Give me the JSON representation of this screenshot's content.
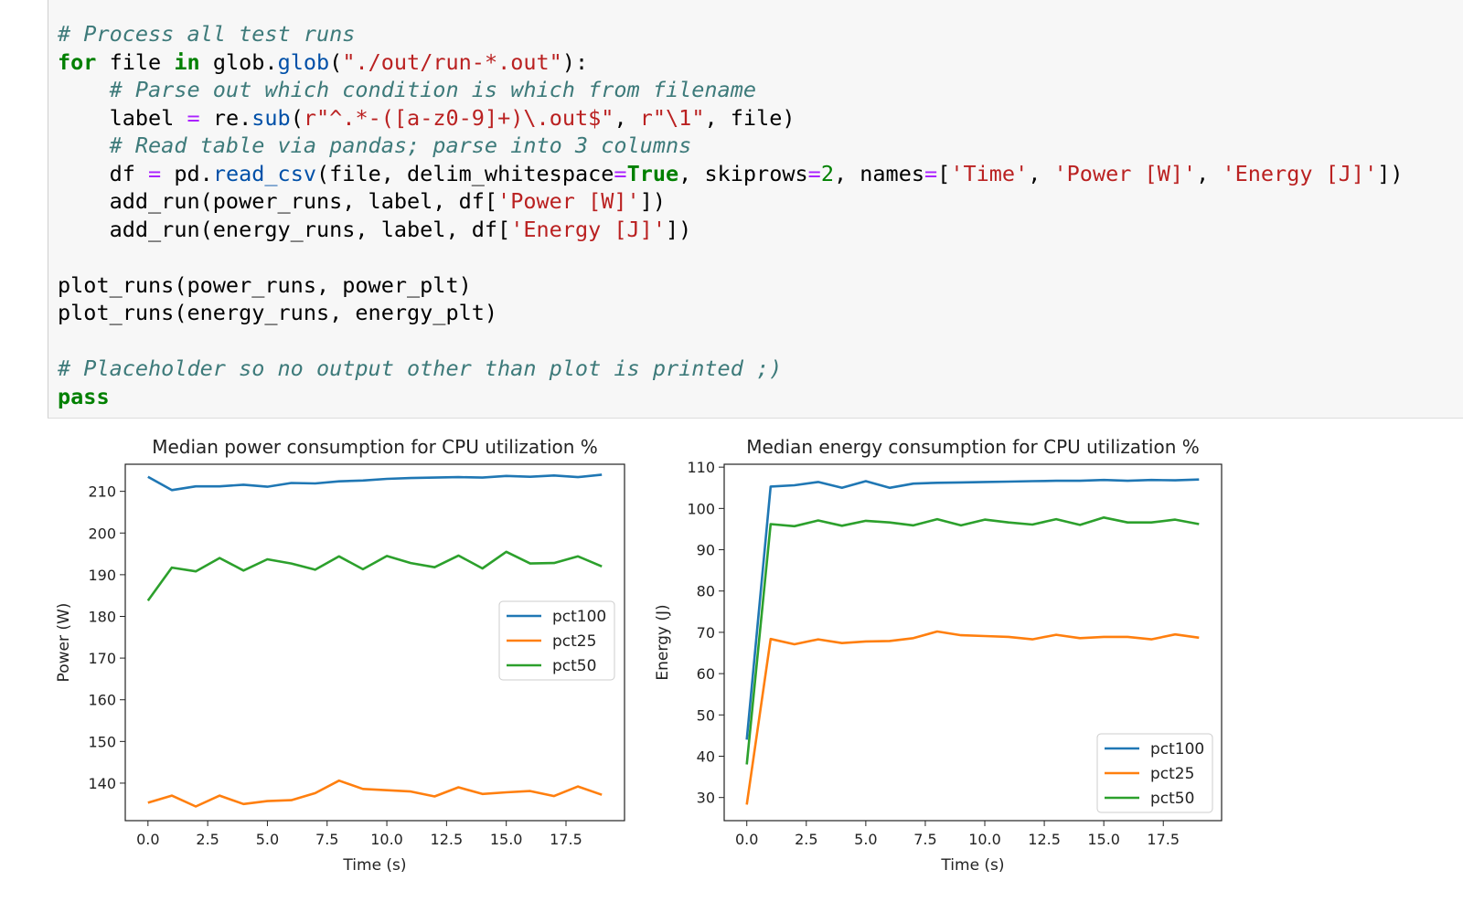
{
  "code": {
    "line1": "# Process all test runs",
    "kw_for": "for",
    "v_file": "file",
    "kw_in": "in",
    "p_glob": "glob.",
    "fn_glob": "glob",
    "s_pattern": "\"./out/run-*.out\"",
    "c_parse": "# Parse out which condition is which from filename",
    "v_label": "label",
    "eq": "=",
    "p_re": "re.",
    "fn_sub": "sub",
    "s_regex": "r\"^.*-([a-z0-9]+)\\.out$\"",
    "s_group": "r\"\\1\"",
    "c_read": "# Read table via pandas; parse into 3 columns",
    "v_df": "df",
    "p_pd": "pd.",
    "fn_read_csv": "read_csv",
    "arg_file": "(file, delim_whitespace",
    "kw_true": "True",
    "arg_skip": ", skiprows",
    "num_2": "2",
    "arg_names": ", names",
    "s_time": "'Time'",
    "s_power": "'Power [W]'",
    "s_energy": "'Energy [J]'",
    "add_power": "add_run(power_runs, label, df[",
    "add_energy": "add_run(energy_runs, label, df[",
    "plot_power": "plot_runs(power_runs, power_plt)",
    "plot_energy": "plot_runs(energy_runs, energy_plt)",
    "c_placeholder": "# Placeholder so no output other than plot is printed ;)",
    "kw_pass": "pass"
  },
  "chart_data": [
    {
      "type": "line",
      "title": "Median power consumption for CPU utilization %",
      "xlabel": "Time (s)",
      "ylabel": "Power (W)",
      "xlim": [
        -0.95,
        19.95
      ],
      "ylim": [
        131,
        216.5
      ],
      "xticks": [
        0.0,
        2.5,
        5.0,
        7.5,
        10.0,
        12.5,
        15.0,
        17.5
      ],
      "xtick_labels": [
        "0.0",
        "2.5",
        "5.0",
        "7.5",
        "10.0",
        "12.5",
        "15.0",
        "17.5"
      ],
      "yticks": [
        140,
        150,
        160,
        170,
        180,
        190,
        200,
        210
      ],
      "ytick_labels": [
        "140",
        "150",
        "160",
        "170",
        "180",
        "190",
        "200",
        "210"
      ],
      "legend": "center-right",
      "grid": false,
      "x": [
        0,
        1,
        2,
        3,
        4,
        5,
        6,
        7,
        8,
        9,
        10,
        11,
        12,
        13,
        14,
        15,
        16,
        17,
        18,
        19
      ],
      "series": [
        {
          "name": "pct100",
          "color": "#1f77b4",
          "values": [
            213.5,
            210.3,
            211.2,
            211.2,
            211.6,
            211.1,
            212.0,
            211.9,
            212.4,
            212.6,
            213.0,
            213.2,
            213.3,
            213.4,
            213.3,
            213.7,
            213.5,
            213.8,
            213.4,
            214.0
          ]
        },
        {
          "name": "pct25",
          "color": "#ff7f0e",
          "values": [
            135.3,
            137.0,
            134.4,
            137.0,
            135.0,
            135.7,
            135.9,
            137.6,
            140.6,
            138.6,
            138.3,
            138.0,
            136.8,
            139.0,
            137.4,
            137.8,
            138.1,
            136.9,
            139.2,
            137.2
          ]
        },
        {
          "name": "pct50",
          "color": "#2ca02c",
          "values": [
            183.8,
            191.7,
            190.8,
            194.0,
            191.0,
            193.7,
            192.7,
            191.2,
            194.4,
            191.3,
            194.5,
            192.8,
            191.8,
            194.6,
            191.5,
            195.5,
            192.7,
            192.8,
            194.4,
            192.0
          ]
        }
      ]
    },
    {
      "type": "line",
      "title": "Median energy consumption for CPU utilization %",
      "xlabel": "Time (s)",
      "ylabel": "Energy (J)",
      "xlim": [
        -0.95,
        19.95
      ],
      "ylim": [
        24.4,
        110.7
      ],
      "xticks": [
        0.0,
        2.5,
        5.0,
        7.5,
        10.0,
        12.5,
        15.0,
        17.5
      ],
      "xtick_labels": [
        "0.0",
        "2.5",
        "5.0",
        "7.5",
        "10.0",
        "12.5",
        "15.0",
        "17.5"
      ],
      "yticks": [
        30,
        40,
        50,
        60,
        70,
        80,
        90,
        100,
        110
      ],
      "ytick_labels": [
        "30",
        "40",
        "50",
        "60",
        "70",
        "80",
        "90",
        "100",
        "110"
      ],
      "legend": "lower-right",
      "grid": false,
      "x": [
        0,
        1,
        2,
        3,
        4,
        5,
        6,
        7,
        8,
        9,
        10,
        11,
        12,
        13,
        14,
        15,
        16,
        17,
        18,
        19
      ],
      "series": [
        {
          "name": "pct100",
          "color": "#1f77b4",
          "values": [
            44.0,
            105.3,
            105.6,
            106.4,
            105.0,
            106.6,
            105.0,
            106.0,
            106.2,
            106.3,
            106.4,
            106.5,
            106.6,
            106.7,
            106.7,
            106.9,
            106.7,
            106.9,
            106.8,
            107.0
          ]
        },
        {
          "name": "pct25",
          "color": "#ff7f0e",
          "values": [
            28.3,
            68.4,
            67.1,
            68.3,
            67.4,
            67.8,
            67.9,
            68.6,
            70.2,
            69.3,
            69.1,
            68.9,
            68.3,
            69.4,
            68.6,
            68.9,
            68.9,
            68.3,
            69.5,
            68.7
          ]
        },
        {
          "name": "pct50",
          "color": "#2ca02c",
          "values": [
            38.0,
            96.2,
            95.7,
            97.1,
            95.8,
            97.0,
            96.6,
            95.9,
            97.4,
            95.9,
            97.3,
            96.6,
            96.1,
            97.4,
            96.0,
            97.8,
            96.6,
            96.6,
            97.3,
            96.2
          ]
        }
      ]
    }
  ]
}
